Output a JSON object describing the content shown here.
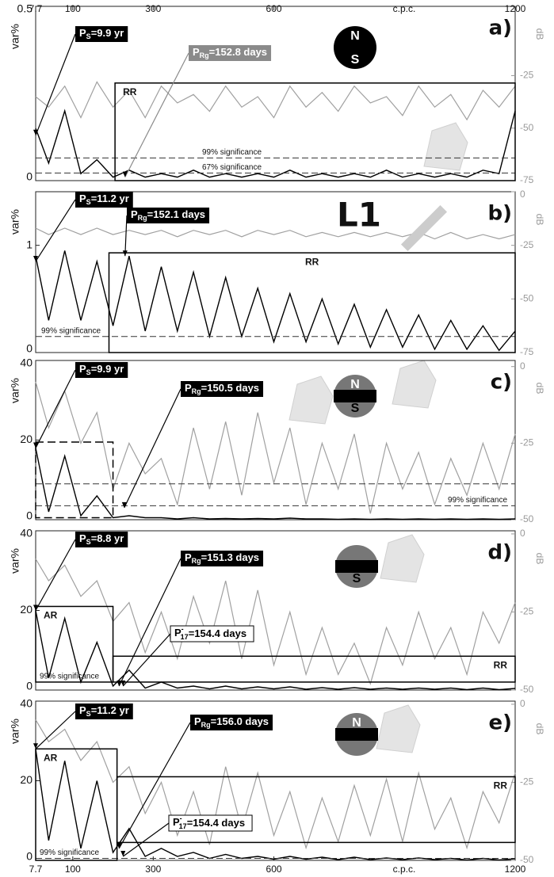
{
  "chart_data": [
    {
      "type": "line",
      "panel": "a)",
      "ylabel": "var%",
      "y2label": "dB",
      "xlabel": "c.p.c.",
      "xlim": [
        7.7,
        1200
      ],
      "xticks": [
        7.7,
        100,
        300,
        600,
        1200
      ],
      "ylim": [
        0,
        0.5
      ],
      "yticks": [
        0,
        0.5
      ],
      "y2lim": [
        -75,
        8
      ],
      "y2ticks": [
        -75,
        -50,
        -25
      ],
      "x": [
        7.7,
        40,
        80,
        120,
        160,
        200,
        240,
        280,
        320,
        360,
        400,
        440,
        480,
        520,
        560,
        600,
        640,
        680,
        720,
        760,
        800,
        840,
        880,
        920,
        960,
        1000,
        1040,
        1080,
        1120,
        1160,
        1200
      ],
      "series": [
        {
          "color": "#000000",
          "values": [
            0.15,
            0.05,
            0.2,
            0.02,
            0.06,
            0.01,
            0.03,
            0.01,
            0.02,
            0.01,
            0.03,
            0.01,
            0.02,
            0.01,
            0.02,
            0.01,
            0.03,
            0.01,
            0.02,
            0.01,
            0.02,
            0.01,
            0.03,
            0.01,
            0.02,
            0.01,
            0.02,
            0.01,
            0.03,
            0.02,
            0.2
          ]
        },
        {
          "color": "#a0a0a0",
          "axis": "y2",
          "values": [
            -35,
            -40,
            -30,
            -45,
            -28,
            -40,
            -32,
            -45,
            -30,
            -38,
            -34,
            -42,
            -30,
            -40,
            -35,
            -45,
            -30,
            -40,
            -33,
            -42,
            -30,
            -38,
            -35,
            -44,
            -30,
            -40,
            -34,
            -46,
            -32,
            -40,
            -30
          ]
        }
      ],
      "significance": [
        {
          "label": "99% significance",
          "value": 0.065
        },
        {
          "label": "67% significance",
          "value": 0.022
        }
      ],
      "regions": [
        {
          "label": "RR",
          "x": [
            205,
            1200
          ],
          "y": [
            0,
            0.28
          ]
        }
      ],
      "annotations": [
        {
          "symbol": "P",
          "sub": "S",
          "rest": "=9.9 yr",
          "style": "dark",
          "x": 7.7,
          "y": 0.13
        },
        {
          "symbol": "P",
          "sub": "Rg",
          "rest": "=152.8 days",
          "style": "gray",
          "x": 230,
          "y": 0.01
        }
      ],
      "icon": [
        "N",
        "S"
      ]
    },
    {
      "type": "line",
      "panel": "b)",
      "ylabel": "var%",
      "y2label": "dB",
      "xlim": [
        7.7,
        1200
      ],
      "ylim": [
        0,
        1.5
      ],
      "yticks": [
        0,
        1
      ],
      "y2lim": [
        -75,
        0
      ],
      "y2ticks": [
        -75,
        -50,
        -25,
        0
      ],
      "x": [
        7.7,
        40,
        80,
        120,
        160,
        200,
        240,
        280,
        320,
        360,
        400,
        440,
        480,
        520,
        560,
        600,
        640,
        680,
        720,
        760,
        800,
        840,
        880,
        920,
        960,
        1000,
        1040,
        1080,
        1120,
        1160,
        1200
      ],
      "series": [
        {
          "color": "#000000",
          "values": [
            0.9,
            0.3,
            0.95,
            0.3,
            0.85,
            0.25,
            0.9,
            0.2,
            0.8,
            0.2,
            0.75,
            0.15,
            0.7,
            0.15,
            0.6,
            0.1,
            0.55,
            0.1,
            0.5,
            0.08,
            0.45,
            0.05,
            0.4,
            0.05,
            0.35,
            0.03,
            0.3,
            0.03,
            0.25,
            0.02,
            0.2
          ]
        },
        {
          "color": "#a0a0a0",
          "axis": "y2",
          "values": [
            -17,
            -20,
            -17,
            -20,
            -17,
            -20,
            -18,
            -20,
            -18,
            -21,
            -18,
            -20,
            -18,
            -21,
            -18,
            -20,
            -18,
            -21,
            -19,
            -21,
            -19,
            -21,
            -19,
            -21,
            -19,
            -22,
            -19,
            -22,
            -20,
            -22,
            -20
          ]
        }
      ],
      "significance": [
        {
          "label": "99% significance",
          "value": 0.15
        }
      ],
      "regions": [
        {
          "label": "RR",
          "x": [
            190,
            1200
          ],
          "y": [
            0,
            0.93
          ]
        }
      ],
      "annotations": [
        {
          "symbol": "P",
          "sub": "S",
          "rest": "=11.2 yr",
          "style": "dark",
          "x": 7.7,
          "y": 0.85
        },
        {
          "symbol": "P",
          "sub": "Rg",
          "rest": "=152.1 days",
          "style": "dark",
          "x": 230,
          "y": 0.9
        }
      ],
      "icon": [
        "L1"
      ]
    },
    {
      "type": "line",
      "panel": "c)",
      "ylabel": "var%",
      "y2label": "dB",
      "xlim": [
        7.7,
        1200
      ],
      "ylim": [
        0,
        40
      ],
      "yticks": [
        0,
        20,
        40
      ],
      "y2lim": [
        -50,
        2
      ],
      "y2ticks": [
        -50,
        -25,
        0
      ],
      "x": [
        7.7,
        40,
        80,
        120,
        160,
        200,
        240,
        280,
        320,
        360,
        400,
        440,
        480,
        520,
        560,
        600,
        640,
        680,
        720,
        760,
        800,
        840,
        880,
        920,
        960,
        1000,
        1040,
        1080,
        1120,
        1160,
        1200
      ],
      "series": [
        {
          "color": "#000000",
          "values": [
            18,
            2,
            16,
            1,
            6,
            0.5,
            1,
            0.5,
            0.5,
            0.2,
            0.5,
            0.2,
            0.3,
            0.2,
            0.3,
            0.2,
            0.4,
            0.2,
            0.2,
            0.1,
            0.2,
            0.1,
            0.2,
            0.1,
            0.2,
            0.1,
            0.2,
            0.1,
            0.2,
            0.1,
            0.2
          ]
        },
        {
          "color": "#a0a0a0",
          "axis": "y2",
          "values": [
            -5,
            -20,
            -8,
            -25,
            -15,
            -40,
            -25,
            -35,
            -30,
            -45,
            -20,
            -40,
            -18,
            -42,
            -15,
            -38,
            -20,
            -45,
            -25,
            -40,
            -22,
            -48,
            -25,
            -40,
            -28,
            -45,
            -30,
            -42,
            -25,
            -40,
            -22
          ]
        }
      ],
      "significance": [
        {
          "value": 9
        },
        {
          "label": "99% significance",
          "value": 3.5
        }
      ],
      "regions": [
        {
          "x": [
            7.7,
            200
          ],
          "y": [
            0.5,
            19.5
          ]
        }
      ],
      "annotations": [
        {
          "symbol": "P",
          "sub": "S",
          "rest": "=9.9 yr",
          "style": "dark",
          "x": 7.7,
          "y": 18
        },
        {
          "symbol": "P",
          "sub": "Rg",
          "rest": "=150.5 days",
          "style": "dark",
          "x": 228,
          "y": 3
        }
      ],
      "icon": [
        "N",
        "S"
      ]
    },
    {
      "type": "line",
      "panel": "d)",
      "ylabel": "var%",
      "y2label": "dB",
      "xlim": [
        7.7,
        1200
      ],
      "ylim": [
        0,
        40
      ],
      "yticks": [
        0,
        20,
        40
      ],
      "y2lim": [
        -50,
        1
      ],
      "y2ticks": [
        -50,
        -25,
        0
      ],
      "x": [
        7.7,
        40,
        80,
        120,
        160,
        200,
        240,
        280,
        320,
        360,
        400,
        440,
        480,
        520,
        560,
        600,
        640,
        680,
        720,
        760,
        800,
        840,
        880,
        920,
        960,
        1000,
        1040,
        1080,
        1120,
        1160,
        1200
      ],
      "series": [
        {
          "color": "#000000",
          "values": [
            20,
            3,
            18,
            2,
            12,
            1,
            5,
            0.5,
            2,
            0.5,
            1,
            0.3,
            1,
            0.3,
            0.8,
            0.3,
            0.8,
            0.2,
            0.6,
            0.2,
            0.6,
            0.2,
            0.5,
            0.2,
            0.5,
            0.2,
            0.5,
            0.1,
            0.5,
            0.1,
            0.4
          ]
        },
        {
          "color": "#a0a0a0",
          "axis": "y2",
          "values": [
            -8,
            -15,
            -10,
            -20,
            -15,
            -28,
            -22,
            -38,
            -25,
            -40,
            -20,
            -35,
            -15,
            -40,
            -18,
            -42,
            -25,
            -45,
            -30,
            -45,
            -35,
            -48,
            -30,
            -42,
            -25,
            -40,
            -30,
            -45,
            -25,
            -35,
            -22
          ]
        }
      ],
      "significance": [
        {
          "label": "99% significance",
          "value": 2
        }
      ],
      "regions": [
        {
          "label": "AR",
          "x": [
            7.7,
            200
          ],
          "y": [
            2,
            21
          ]
        },
        {
          "label": "RR",
          "x": [
            200,
            1200
          ],
          "y": [
            2,
            8.5
          ]
        }
      ],
      "annotations": [
        {
          "symbol": "P",
          "sub": "S",
          "rest": "=8.8 yr",
          "style": "dark",
          "x": 7.7,
          "y": 20
        },
        {
          "symbol": "P",
          "sub": "Rg",
          "rest": "=151.3 days",
          "style": "dark",
          "x": 215,
          "y": 1
        },
        {
          "symbol": "P",
          "sup": "-",
          "sub": "17",
          "rest": "=154.4 days",
          "style": "outline",
          "x": 225,
          "y": 1
        }
      ],
      "icon": [
        "S"
      ]
    },
    {
      "type": "line",
      "panel": "e)",
      "ylabel": "var%",
      "y2label": "dB",
      "xlabel": "c.p.c.",
      "xlim": [
        7.7,
        1200
      ],
      "xticks": [
        7.7,
        100,
        300,
        600,
        1200
      ],
      "ylim": [
        0,
        40
      ],
      "yticks": [
        0,
        20,
        40
      ],
      "y2lim": [
        -50,
        1
      ],
      "y2ticks": [
        -50,
        -25,
        0
      ],
      "x": [
        7.7,
        40,
        80,
        120,
        160,
        200,
        240,
        280,
        320,
        360,
        400,
        440,
        480,
        520,
        560,
        600,
        640,
        680,
        720,
        760,
        800,
        840,
        880,
        920,
        960,
        1000,
        1040,
        1080,
        1120,
        1160,
        1200
      ],
      "series": [
        {
          "color": "#000000",
          "values": [
            28,
            5,
            25,
            3,
            20,
            2,
            8,
            1,
            3,
            1,
            2,
            0.5,
            1.5,
            0.5,
            1,
            0.3,
            1,
            0.3,
            0.8,
            0.2,
            0.8,
            0.2,
            0.6,
            0.2,
            0.6,
            0.2,
            0.5,
            0.1,
            0.5,
            0.1,
            0.4
          ]
        },
        {
          "color": "#a0a0a0",
          "axis": "y2",
          "values": [
            -5,
            -12,
            -8,
            -18,
            -12,
            -25,
            -20,
            -35,
            -25,
            -42,
            -28,
            -45,
            -20,
            -40,
            -22,
            -42,
            -28,
            -46,
            -30,
            -44,
            -26,
            -42,
            -24,
            -44,
            -22,
            -40,
            -30,
            -46,
            -28,
            -38,
            -22
          ]
        }
      ],
      "significance": [
        {
          "label": "99% significance",
          "value": 0.5
        }
      ],
      "regions": [
        {
          "label": "AR",
          "x": [
            7.7,
            210
          ],
          "y": [
            0,
            28
          ]
        },
        {
          "label": "RR",
          "x": [
            210,
            1200
          ],
          "y": [
            4.5,
            21
          ]
        }
      ],
      "annotations": [
        {
          "symbol": "P",
          "sub": "S",
          "rest": "=11.2 yr",
          "style": "dark",
          "x": 7.7,
          "y": 28
        },
        {
          "symbol": "P",
          "sub": "Rg",
          "rest": "=156.0 days",
          "style": "dark",
          "x": 215,
          "y": 3
        },
        {
          "symbol": "P",
          "sup": "-",
          "sub": "17",
          "rest": "=154.4 days",
          "style": "outline",
          "x": 225,
          "y": 1
        }
      ],
      "icon": [
        "N"
      ]
    }
  ]
}
